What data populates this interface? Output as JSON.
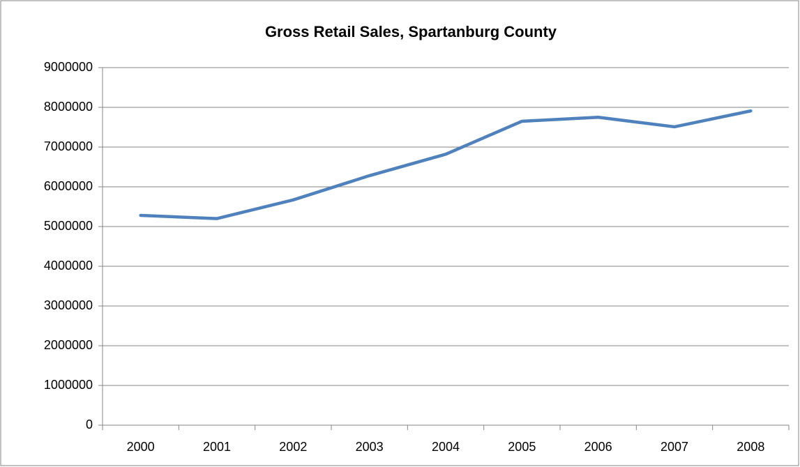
{
  "chart_data": {
    "type": "line",
    "title": "Gross Retail Sales, Spartanburg County",
    "categories": [
      "2000",
      "2001",
      "2002",
      "2003",
      "2004",
      "2005",
      "2006",
      "2007",
      "2008"
    ],
    "series": [
      {
        "name": "Gross Retail Sales",
        "color": "#4f81bd",
        "values": [
          5280000,
          5200000,
          5670000,
          6280000,
          6820000,
          7650000,
          7750000,
          7510000,
          7910000
        ]
      }
    ],
    "ylim": [
      0,
      9000000
    ],
    "yticks": [
      0,
      1000000,
      2000000,
      3000000,
      4000000,
      5000000,
      6000000,
      7000000,
      8000000,
      9000000
    ],
    "grid": true,
    "legend": false
  }
}
